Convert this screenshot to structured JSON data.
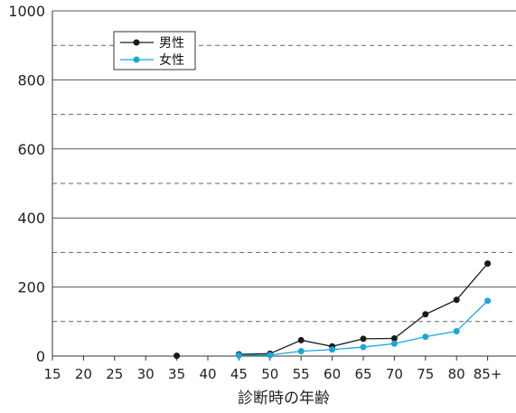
{
  "chart_data": {
    "type": "line",
    "xlabel": "診断時の年齢",
    "ylabel": "",
    "categories": [
      "15",
      "20",
      "25",
      "30",
      "35",
      "40",
      "45",
      "50",
      "55",
      "60",
      "65",
      "70",
      "75",
      "80",
      "85+"
    ],
    "ylim": [
      0,
      1000
    ],
    "y_ticks": [
      0,
      200,
      400,
      600,
      800,
      1000
    ],
    "major_gridlines": [
      200,
      400,
      600,
      800,
      1000
    ],
    "minor_gridlines_dashed": [
      100,
      300,
      500,
      700,
      900
    ],
    "legend_position": "top-left",
    "series": [
      {
        "name": "男性",
        "color": "#1a1a1a",
        "values": [
          null,
          null,
          null,
          null,
          1,
          null,
          5,
          7,
          46,
          28,
          50,
          51,
          121,
          163,
          268
        ]
      },
      {
        "name": "女性",
        "color": "#1aa6d8",
        "values": [
          null,
          null,
          null,
          null,
          null,
          null,
          2,
          3,
          14,
          19,
          26,
          36,
          56,
          72,
          160
        ]
      }
    ]
  }
}
